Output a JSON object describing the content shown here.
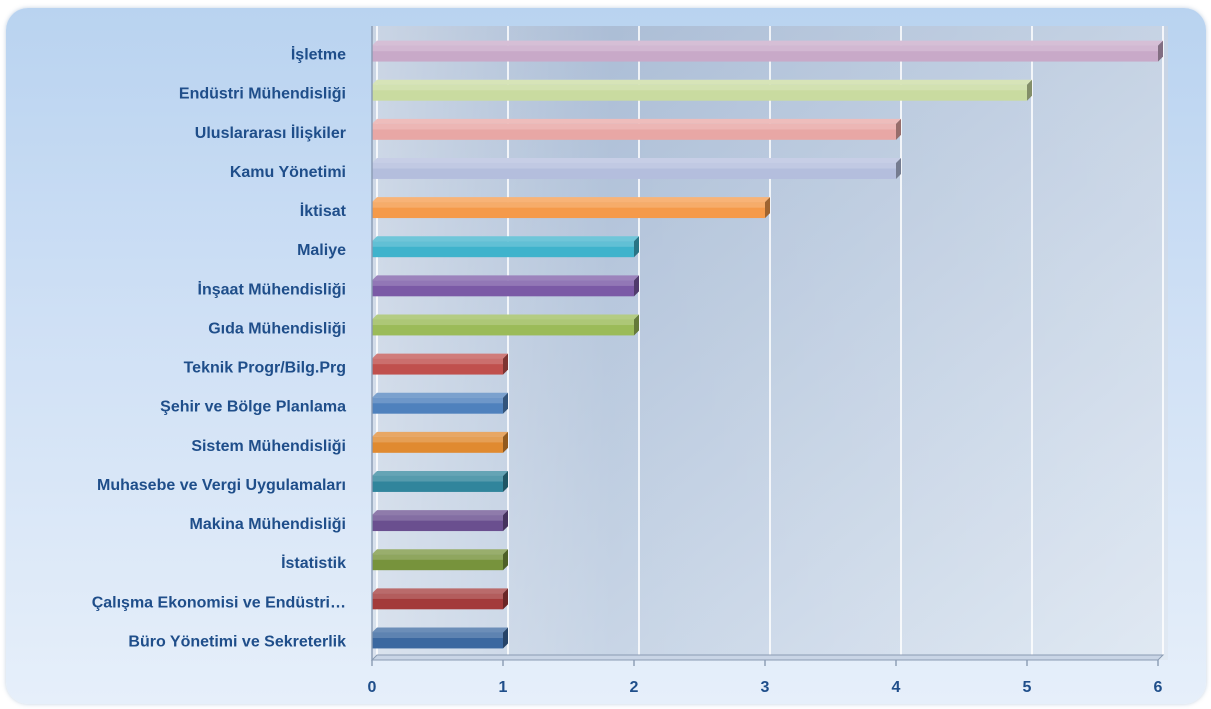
{
  "chart_data": {
    "type": "bar",
    "orientation": "horizontal",
    "categories": [
      "İşletme",
      "Endüstri Mühendisliği",
      "Uluslararası İlişkiler",
      "Kamu Yönetimi",
      "İktisat",
      "Maliye",
      "İnşaat Mühendisliği",
      "Gıda Mühendisliği",
      "Teknik Progr/Bilg.Prg",
      "Şehir ve Bölge Planlama",
      "Sistem Mühendisliği",
      "Muhasebe ve Vergi Uygulamaları",
      "Makina Mühendisliği",
      "İstatistik",
      "Çalışma Ekonomisi ve Endüstri…",
      "Büro Yönetimi ve Sekreterlik"
    ],
    "values": [
      6,
      5,
      4,
      4,
      3,
      2,
      2,
      2,
      1,
      1,
      1,
      1,
      1,
      1,
      1,
      1
    ],
    "colors": [
      "#c8a9c8",
      "#c9dba0",
      "#e8a7a5",
      "#b4bedd",
      "#f59a4a",
      "#3fb3cc",
      "#7b5aa6",
      "#9bbb59",
      "#c0504d",
      "#4f81bd",
      "#e08a30",
      "#31859c",
      "#6a4f8f",
      "#77933c",
      "#a33a3a",
      "#3b68a0"
    ],
    "xlim": [
      0,
      6
    ],
    "xticks": [
      "0",
      "1",
      "2",
      "3",
      "4",
      "5",
      "6"
    ],
    "grid": true,
    "legend": "none"
  }
}
